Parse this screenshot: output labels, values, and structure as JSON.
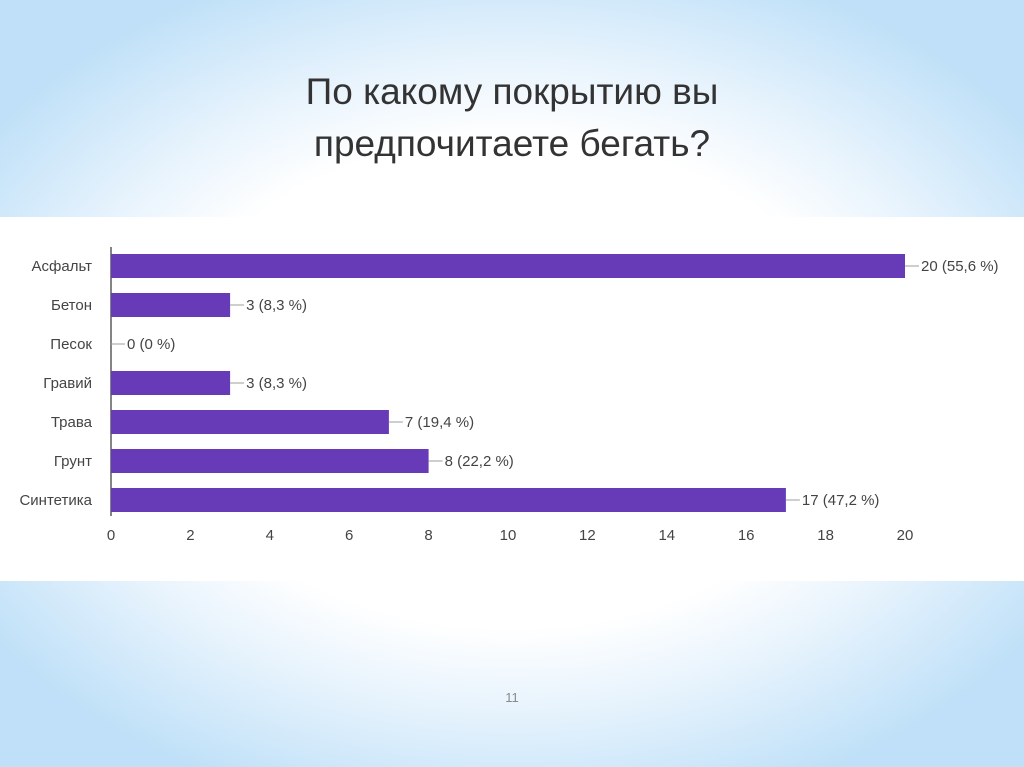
{
  "slide": {
    "title_line1": "По какому покрытию вы",
    "title_line2": "предпочитаете бегать?",
    "page_number": "11"
  },
  "colors": {
    "bar": "#673ab7",
    "axis": "#333333",
    "leader": "#9e9e9e",
    "text": "#444444"
  },
  "chart_data": {
    "type": "bar",
    "orientation": "horizontal",
    "categories": [
      "Асфальт",
      "Бетон",
      "Песок",
      "Гравий",
      "Трава",
      "Грунт",
      "Синтетика"
    ],
    "values": [
      20,
      3,
      0,
      3,
      7,
      8,
      17
    ],
    "data_labels": [
      "20 (55,6 %)",
      "3 (8,3 %)",
      "0 (0 %)",
      "3 (8,3 %)",
      "7 (19,4 %)",
      "8 (22,2 %)",
      "17 (47,2 %)"
    ],
    "xlim": [
      0,
      20
    ],
    "xticks": [
      0,
      2,
      4,
      6,
      8,
      10,
      12,
      14,
      16,
      18,
      20
    ],
    "grid": false,
    "legend": "none"
  }
}
